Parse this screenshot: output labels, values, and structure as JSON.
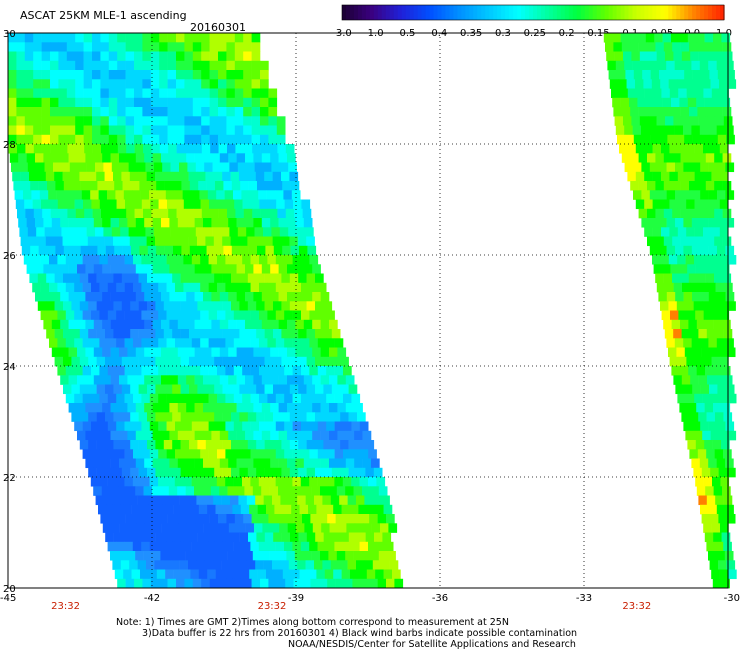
{
  "header": {
    "title": "ASCAT 25KM MLE-1 ascending",
    "date": "20160301"
  },
  "colorbar": {
    "labels": [
      "-3.0",
      "-1.0",
      "-0.5",
      "-0.4",
      "-0.35",
      "-0.3",
      "-0.25",
      "-0.2",
      "-0.15",
      "-0.1",
      "-0.05",
      "0.0",
      "1.0"
    ],
    "colors": [
      "#1a0030",
      "#3a0080",
      "#2020d8",
      "#0050ff",
      "#0090ff",
      "#00c8ff",
      "#00ffff",
      "#00ffa0",
      "#00ff40",
      "#60ff00",
      "#c8ff00",
      "#ffff00",
      "#ff8000",
      "#ff2000"
    ]
  },
  "axes": {
    "x_ticks": [
      "-45",
      "-42",
      "-39",
      "-36",
      "-33",
      "-30"
    ],
    "y_ticks": [
      "20",
      "22",
      "24",
      "26",
      "28",
      "30"
    ],
    "xlim": [
      -45,
      -30
    ],
    "ylim": [
      20,
      30
    ],
    "grid": true
  },
  "times": [
    "23:32",
    "23:32",
    "23:32"
  ],
  "notes": {
    "line1": "Note: 1) Times are GMT 2)Times along bottom correspond to measurement at 25N",
    "line2": "3)Data buffer is 22 hrs from 20160301 4) Black wind barbs indicate possible contamination",
    "line3": "NOAA/NESDIS/Center for Satellite Applications and Research"
  },
  "chart_data": {
    "type": "heatmap",
    "title": "ASCAT 25KM MLE-1 ascending",
    "date": "20160301",
    "xlim": [
      -45,
      -30
    ],
    "ylim": [
      20,
      30
    ],
    "swaths": [
      {
        "lon_left_at_lat": [
          [
            30,
            -45.0
          ],
          [
            28,
            -45.0
          ],
          [
            26,
            -44.7
          ],
          [
            24,
            -44.0
          ],
          [
            22,
            -43.3
          ],
          [
            20,
            -42.7
          ]
        ],
        "lon_right_at_lat": [
          [
            30,
            -39.9
          ],
          [
            28,
            -39.2
          ],
          [
            26,
            -38.6
          ],
          [
            24,
            -38.0
          ],
          [
            22,
            -37.3
          ],
          [
            20,
            -36.8
          ]
        ],
        "dominant_values": "-0.25 to -0.15 (green-cyan), pockets near -0.4 (blue) around -43.5 to -42.5 lon, 21-26 lat"
      },
      {
        "lon_left_at_lat": [
          [
            30,
            -32.6
          ],
          [
            28,
            -32.3
          ],
          [
            26,
            -31.6
          ],
          [
            24,
            -31.2
          ],
          [
            22,
            -30.7
          ],
          [
            20,
            -30.3
          ]
        ],
        "lon_right_at_lat": [
          [
            30,
            -30.0
          ],
          [
            28,
            -30.0
          ],
          [
            26,
            -30.0
          ],
          [
            24,
            -30.0
          ],
          [
            22,
            -30.0
          ],
          [
            20,
            -30.0
          ]
        ],
        "dominant_values": "-0.25 to -0.1 (green)"
      }
    ]
  }
}
